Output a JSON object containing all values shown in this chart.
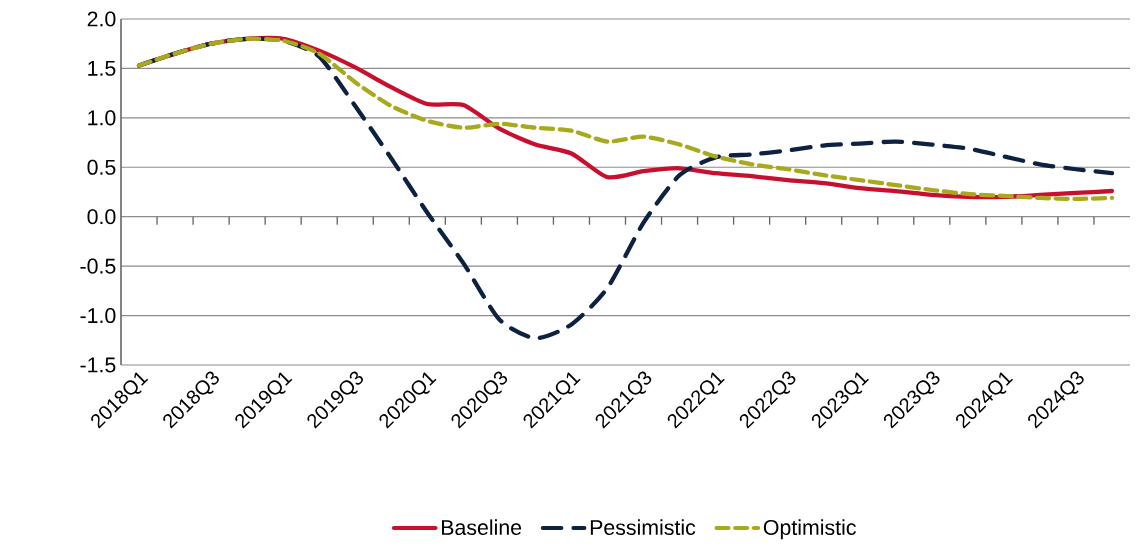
{
  "chart_data": {
    "type": "line",
    "categories": [
      "2018Q1",
      null,
      "2018Q3",
      null,
      "2019Q1",
      null,
      "2019Q3",
      null,
      "2020Q1",
      null,
      "2020Q3",
      null,
      "2021Q1",
      null,
      "2021Q3",
      null,
      "2022Q1",
      null,
      "2022Q3",
      null,
      "2023Q1",
      null,
      "2023Q3",
      null,
      "2024Q1",
      null,
      "2024Q3",
      null
    ],
    "series": [
      {
        "name": "Baseline",
        "color": "#c8102e",
        "line_style": "solid",
        "values": [
          1.53,
          1.65,
          1.75,
          1.8,
          1.8,
          1.68,
          1.51,
          1.31,
          1.14,
          1.13,
          0.89,
          0.73,
          0.64,
          0.4,
          0.46,
          0.49,
          0.44,
          0.41,
          0.37,
          0.34,
          0.29,
          0.26,
          0.22,
          0.2,
          0.2,
          0.22,
          0.24,
          0.26
        ]
      },
      {
        "name": "Pessimistic",
        "color": "#0d2240",
        "line_style": "dashed",
        "values": [
          1.53,
          1.65,
          1.75,
          1.8,
          1.78,
          1.62,
          1.12,
          0.59,
          0.04,
          -0.47,
          -1.04,
          -1.23,
          -1.09,
          -0.72,
          -0.06,
          0.42,
          0.6,
          0.63,
          0.67,
          0.72,
          0.74,
          0.76,
          0.73,
          0.69,
          0.61,
          0.53,
          0.48,
          0.44
        ]
      },
      {
        "name": "Optimistic",
        "color": "#a8a91c",
        "line_style": "dashed",
        "values": [
          1.53,
          1.65,
          1.75,
          1.8,
          1.78,
          1.65,
          1.36,
          1.12,
          0.97,
          0.9,
          0.94,
          0.9,
          0.87,
          0.76,
          0.81,
          0.73,
          0.61,
          0.53,
          0.48,
          0.42,
          0.37,
          0.32,
          0.27,
          0.23,
          0.21,
          0.19,
          0.18,
          0.19
        ]
      }
    ],
    "ylim": [
      -1.5,
      2.0
    ],
    "yticks": [
      {
        "value": -1.5,
        "label": "-1.5"
      },
      {
        "value": -1.0,
        "label": "-1.0"
      },
      {
        "value": -0.5,
        "label": "-0.5"
      },
      {
        "value": 0,
        "label": "0.0"
      },
      {
        "value": 0.5,
        "label": "0.5"
      },
      {
        "value": 1.0,
        "label": "1.0"
      },
      {
        "value": 1.5,
        "label": "1.5"
      },
      {
        "value": 2.0,
        "label": "2.0"
      }
    ],
    "grid": "y",
    "legend": "bottom"
  }
}
